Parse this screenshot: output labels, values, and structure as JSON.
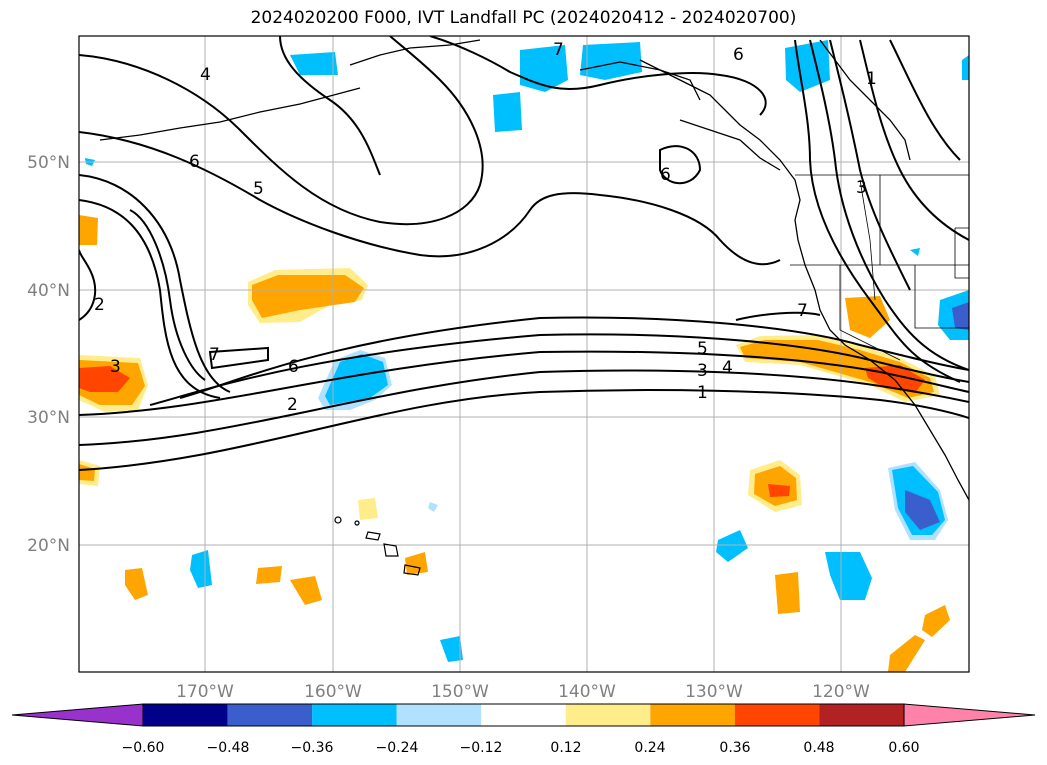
{
  "title": "2024020200 F000, IVT Landfall PC (2024020412 - 2024020700)",
  "lat_labels": [
    "20°N",
    "30°N",
    "40°N",
    "50°N"
  ],
  "lon_labels": [
    "170°W",
    "160°W",
    "150°W",
    "140°W",
    "130°W",
    "120°W"
  ],
  "colorbar": {
    "colors": [
      "#9932cc",
      "#00008b",
      "#3a5fcd",
      "#00bfff",
      "#b0e2ff",
      "#ffffff",
      "#ffec8b",
      "#ffa500",
      "#ff4500",
      "#b22222",
      "#ff82ab"
    ],
    "ticks": [
      "−0.60",
      "−0.48",
      "−0.36",
      "−0.24",
      "−0.12",
      "0.12",
      "0.24",
      "0.36",
      "0.48",
      "0.60"
    ]
  },
  "contour_labels": [
    "1",
    "2",
    "3",
    "4",
    "5",
    "6",
    "7"
  ],
  "map_extent": {
    "lon_range": [
      "180°W",
      "110°W"
    ],
    "lat_range": [
      "10°N",
      "60°N"
    ]
  }
}
